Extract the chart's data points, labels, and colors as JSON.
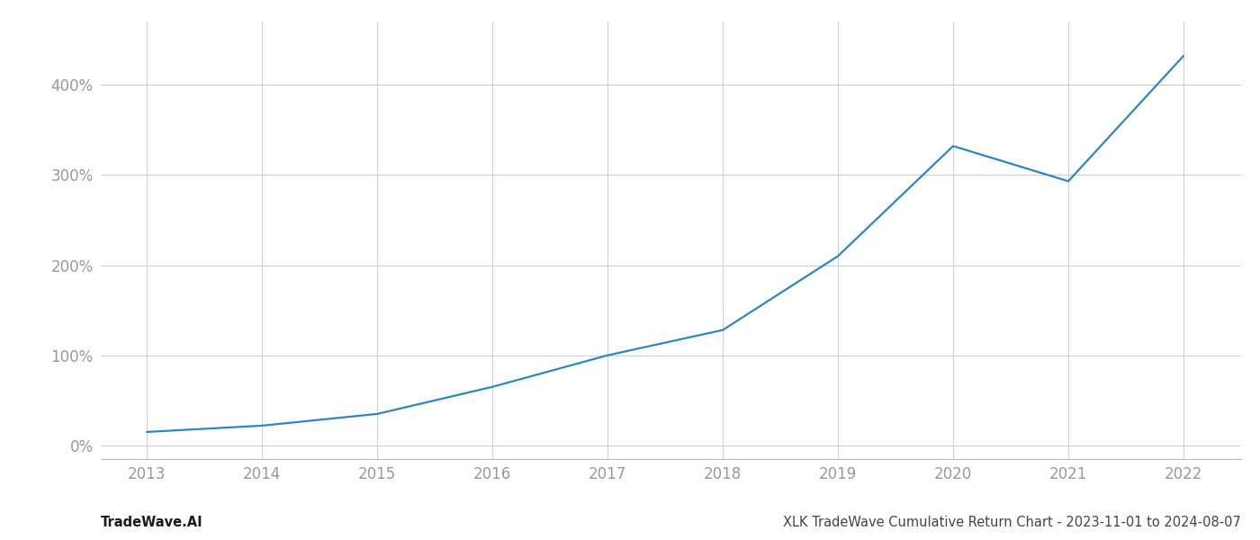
{
  "x_years": [
    2013,
    2014,
    2015,
    2016,
    2017,
    2018,
    2019,
    2020,
    2021,
    2022
  ],
  "y_values": [
    15,
    22,
    35,
    65,
    100,
    128,
    210,
    332,
    293,
    432
  ],
  "line_color": "#2e86c1",
  "line_width": 1.6,
  "background_color": "#ffffff",
  "grid_color": "#cccccc",
  "ylabel_ticks": [
    0,
    100,
    200,
    300,
    400
  ],
  "ylabel_tick_labels": [
    "0%",
    "100%",
    "200%",
    "300%",
    "400%"
  ],
  "xlim": [
    2012.6,
    2022.5
  ],
  "ylim": [
    -15,
    470
  ],
  "footer_left": "TradeWave.AI",
  "footer_right": "XLK TradeWave Cumulative Return Chart - 2023-11-01 to 2024-08-07",
  "tick_color": "#999999",
  "tick_fontsize": 12,
  "footer_fontsize": 10.5,
  "footer_left_color": "#1a1a1a",
  "footer_right_color": "#444444"
}
